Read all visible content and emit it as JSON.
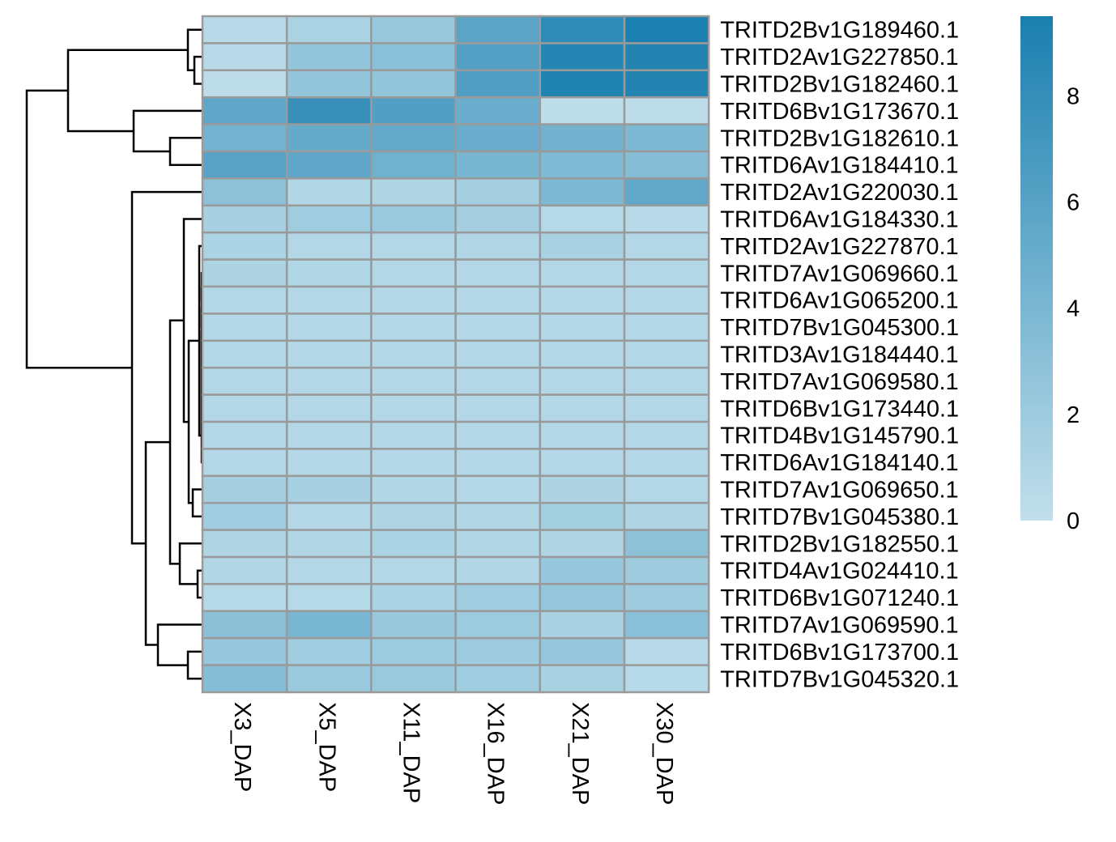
{
  "chart_data": {
    "type": "heatmap",
    "columns": [
      "X3_DAP",
      "X5_DAP",
      "X11_DAP",
      "X16_DAP",
      "X21_DAP",
      "X30_DAP"
    ],
    "rows": [
      "TRITD2Bv1G189460.1",
      "TRITD2Av1G227850.1",
      "TRITD2Bv1G182460.1",
      "TRITD6Bv1G173670.1",
      "TRITD2Bv1G182610.1",
      "TRITD6Av1G184410.1",
      "TRITD2Av1G220030.1",
      "TRITD6Av1G184330.1",
      "TRITD2Av1G227870.1",
      "TRITD7Av1G069660.1",
      "TRITD6Av1G065200.1",
      "TRITD7Bv1G045300.1",
      "TRITD3Av1G184440.1",
      "TRITD7Av1G069580.1",
      "TRITD6Bv1G173440.1",
      "TRITD4Bv1G145790.1",
      "TRITD6Av1G184140.1",
      "TRITD7Av1G069650.1",
      "TRITD7Bv1G045380.1",
      "TRITD2Bv1G182550.1",
      "TRITD4Av1G024410.1",
      "TRITD6Bv1G071240.1",
      "TRITD7Av1G069590.1",
      "TRITD6Bv1G173700.1",
      "TRITD7Bv1G045320.1"
    ],
    "values": [
      [
        0.5,
        1.2,
        2.3,
        5.8,
        8.3,
        9.4
      ],
      [
        0.5,
        2.6,
        3.2,
        6.2,
        8.8,
        9.0
      ],
      [
        0.3,
        2.6,
        2.6,
        6.4,
        9.2,
        9.0
      ],
      [
        5.6,
        7.8,
        6.3,
        4.9,
        0.2,
        0.3
      ],
      [
        4.4,
        5.2,
        5.3,
        5.0,
        4.5,
        3.8
      ],
      [
        6.0,
        5.6,
        4.6,
        4.2,
        3.7,
        3.4
      ],
      [
        3.0,
        0.9,
        1.0,
        1.6,
        3.8,
        5.5
      ],
      [
        1.5,
        1.9,
        2.2,
        1.6,
        0.6,
        0.5
      ],
      [
        1.2,
        0.8,
        0.8,
        0.9,
        1.4,
        0.8
      ],
      [
        1.1,
        0.9,
        0.8,
        0.8,
        0.8,
        0.8
      ],
      [
        0.8,
        0.8,
        0.8,
        0.8,
        0.8,
        0.8
      ],
      [
        0.8,
        0.8,
        0.8,
        0.8,
        0.8,
        0.8
      ],
      [
        0.8,
        0.8,
        0.8,
        0.8,
        0.8,
        0.8
      ],
      [
        0.8,
        0.8,
        0.8,
        0.8,
        0.8,
        0.8
      ],
      [
        0.8,
        0.8,
        0.8,
        0.8,
        0.8,
        0.8
      ],
      [
        0.8,
        0.8,
        0.8,
        0.8,
        0.8,
        0.8
      ],
      [
        0.8,
        0.8,
        0.8,
        0.8,
        0.8,
        0.8
      ],
      [
        1.6,
        1.5,
        0.9,
        0.8,
        1.1,
        0.8
      ],
      [
        1.8,
        0.8,
        1.0,
        0.9,
        1.7,
        1.0
      ],
      [
        1.0,
        0.9,
        1.2,
        0.9,
        1.0,
        3.0
      ],
      [
        0.9,
        0.8,
        0.8,
        0.9,
        2.4,
        2.0
      ],
      [
        0.6,
        0.6,
        1.2,
        1.9,
        2.5,
        2.0
      ],
      [
        3.1,
        4.1,
        2.3,
        2.1,
        1.3,
        3.2
      ],
      [
        2.4,
        1.9,
        2.1,
        2.0,
        2.4,
        0.5
      ],
      [
        3.4,
        2.2,
        2.2,
        1.9,
        1.4,
        0.6
      ]
    ],
    "color_scale": {
      "min": 0,
      "max": 9.5,
      "low_color": "#c1dfeb",
      "high_color": "#1a7faf",
      "ticks": [
        0,
        2,
        4,
        6,
        8
      ]
    },
    "cell_border_color": "#9a9a9a",
    "dendrogram_color": "#000000",
    "legend_placement": "right"
  }
}
